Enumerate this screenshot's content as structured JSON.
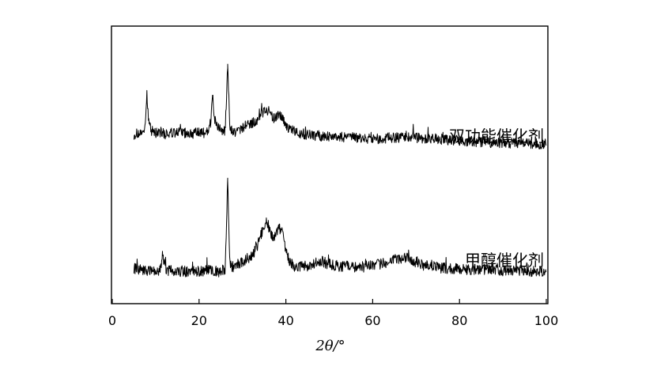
{
  "chart_data": {
    "type": "line",
    "title": "",
    "xlabel": "2θ/°",
    "ylabel": "",
    "xlim": [
      0,
      100
    ],
    "xticks": [
      0,
      20,
      40,
      60,
      80,
      100
    ],
    "yticks_shown": false,
    "grid": false,
    "legend": "none",
    "series": [
      {
        "name": "双功能催化剂",
        "x": [
          5,
          6,
          7,
          7.6,
          8.0,
          8.4,
          9,
          10,
          11.3,
          12,
          14,
          16,
          18,
          20,
          22,
          22.7,
          23.1,
          23.6,
          24,
          25,
          26,
          26.6,
          27.1,
          28,
          29,
          30,
          31,
          32,
          33,
          34,
          35,
          35.6,
          36.3,
          37,
          37.6,
          38.3,
          39,
          39.8,
          41,
          43,
          45,
          48,
          52,
          56,
          60,
          64,
          68,
          72,
          76,
          80,
          84,
          88,
          92,
          96,
          100
        ],
        "values": [
          0.33,
          0.35,
          0.34,
          0.5,
          1.2,
          0.6,
          0.42,
          0.36,
          0.38,
          0.34,
          0.36,
          0.37,
          0.35,
          0.36,
          0.38,
          0.6,
          1.15,
          0.65,
          0.5,
          0.45,
          0.38,
          1.8,
          0.45,
          0.38,
          0.4,
          0.48,
          0.52,
          0.56,
          0.62,
          0.72,
          0.82,
          0.86,
          0.78,
          0.68,
          0.66,
          0.72,
          0.7,
          0.55,
          0.42,
          0.36,
          0.33,
          0.3,
          0.28,
          0.26,
          0.24,
          0.26,
          0.28,
          0.25,
          0.23,
          0.2,
          0.18,
          0.16,
          0.15,
          0.14,
          0.13
        ]
      },
      {
        "name": "甲醇催化剂",
        "x": [
          5,
          7,
          9,
          11,
          11.6,
          12.3,
          14,
          16,
          18,
          20,
          22,
          24,
          26,
          26.6,
          27.1,
          28,
          30,
          32,
          33,
          34,
          35,
          35.6,
          36.3,
          37,
          37.6,
          38.3,
          39,
          39.8,
          41,
          42,
          44,
          46,
          48,
          50,
          52,
          54,
          56,
          58,
          60,
          62,
          64,
          66,
          68,
          70,
          72,
          74,
          76,
          80,
          84,
          88,
          92,
          96,
          100
        ],
        "values": [
          0.3,
          0.26,
          0.24,
          0.25,
          0.55,
          0.26,
          0.24,
          0.24,
          0.23,
          0.24,
          0.25,
          0.25,
          0.27,
          2.05,
          0.35,
          0.33,
          0.42,
          0.55,
          0.65,
          0.9,
          1.15,
          1.28,
          1.05,
          0.92,
          0.95,
          1.1,
          1.05,
          0.75,
          0.4,
          0.32,
          0.33,
          0.36,
          0.44,
          0.38,
          0.32,
          0.34,
          0.31,
          0.33,
          0.35,
          0.38,
          0.42,
          0.5,
          0.52,
          0.42,
          0.35,
          0.32,
          0.3,
          0.28,
          0.27,
          0.26,
          0.25,
          0.24,
          0.23
        ]
      }
    ]
  }
}
